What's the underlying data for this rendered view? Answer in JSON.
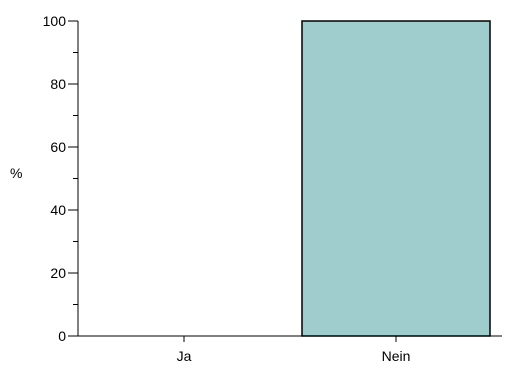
{
  "chart_data": {
    "type": "bar",
    "categories": [
      "Ja",
      "Nein"
    ],
    "values": [
      0,
      100
    ],
    "title": "",
    "xlabel": "",
    "ylabel": "%",
    "ylim": [
      0,
      100
    ],
    "yticks": [
      0,
      20,
      40,
      60,
      80,
      100
    ],
    "grid": false,
    "legend": "none",
    "bar_color": "#9fcccc",
    "bar_edge_color": "#000000",
    "axis_color": "#000000"
  }
}
